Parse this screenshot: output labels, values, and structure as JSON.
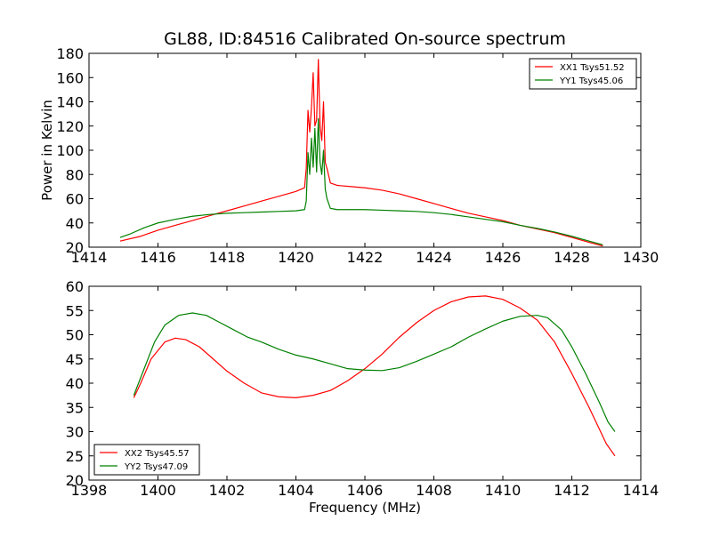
{
  "title": "GL88, ID:84516 Calibrated On-source spectrum",
  "chart_data": [
    {
      "type": "line",
      "xlabel": "",
      "ylabel": "Power in Kelvin",
      "xlim": [
        1414,
        1430
      ],
      "ylim": [
        20,
        180
      ],
      "xticks": [
        1414,
        1416,
        1418,
        1420,
        1422,
        1424,
        1426,
        1428,
        1430
      ],
      "yticks": [
        20,
        40,
        60,
        80,
        100,
        120,
        140,
        160,
        180
      ],
      "legend_position": "top-right",
      "grid": false,
      "series": [
        {
          "name": "XX1 Tsys51.52",
          "color": "#ff0000",
          "points": [
            [
              1414.9,
              25
            ],
            [
              1415.5,
              29
            ],
            [
              1416,
              34
            ],
            [
              1416.5,
              38
            ],
            [
              1417,
              42
            ],
            [
              1417.5,
              46
            ],
            [
              1418,
              50
            ],
            [
              1418.5,
              54
            ],
            [
              1419,
              58
            ],
            [
              1419.5,
              62
            ],
            [
              1420,
              66
            ],
            [
              1420.25,
              69
            ],
            [
              1420.3,
              85
            ],
            [
              1420.35,
              133
            ],
            [
              1420.4,
              115
            ],
            [
              1420.45,
              135
            ],
            [
              1420.5,
              164
            ],
            [
              1420.55,
              120
            ],
            [
              1420.6,
              125
            ],
            [
              1420.65,
              175
            ],
            [
              1420.7,
              120
            ],
            [
              1420.75,
              108
            ],
            [
              1420.8,
              140
            ],
            [
              1420.85,
              90
            ],
            [
              1420.9,
              85
            ],
            [
              1421.0,
              73
            ],
            [
              1421.2,
              71
            ],
            [
              1421.6,
              70
            ],
            [
              1422,
              69
            ],
            [
              1422.5,
              67
            ],
            [
              1423,
              64
            ],
            [
              1423.5,
              60
            ],
            [
              1424,
              56
            ],
            [
              1424.5,
              52
            ],
            [
              1425,
              48
            ],
            [
              1425.5,
              45
            ],
            [
              1426,
              42
            ],
            [
              1426.5,
              38
            ],
            [
              1427,
              35
            ],
            [
              1427.5,
              32
            ],
            [
              1428,
              28
            ],
            [
              1428.5,
              24
            ],
            [
              1428.9,
              21
            ]
          ]
        },
        {
          "name": "YY1 Tsys45.06",
          "color": "#008000",
          "points": [
            [
              1414.9,
              28
            ],
            [
              1415.2,
              31
            ],
            [
              1415.6,
              36
            ],
            [
              1416,
              40
            ],
            [
              1416.5,
              43
            ],
            [
              1417,
              45.5
            ],
            [
              1417.5,
              47
            ],
            [
              1418,
              48
            ],
            [
              1418.5,
              48.5
            ],
            [
              1419,
              49
            ],
            [
              1419.5,
              49.5
            ],
            [
              1420,
              50
            ],
            [
              1420.25,
              51
            ],
            [
              1420.3,
              58
            ],
            [
              1420.35,
              98
            ],
            [
              1420.4,
              80
            ],
            [
              1420.45,
              110
            ],
            [
              1420.5,
              86
            ],
            [
              1420.55,
              118
            ],
            [
              1420.6,
              82
            ],
            [
              1420.65,
              126
            ],
            [
              1420.7,
              90
            ],
            [
              1420.75,
              80
            ],
            [
              1420.8,
              100
            ],
            [
              1420.85,
              68
            ],
            [
              1420.9,
              60
            ],
            [
              1421.0,
              52
            ],
            [
              1421.2,
              51
            ],
            [
              1421.6,
              51
            ],
            [
              1422,
              51
            ],
            [
              1422.5,
              50.5
            ],
            [
              1423,
              50
            ],
            [
              1423.5,
              49.5
            ],
            [
              1424,
              48.5
            ],
            [
              1424.5,
              47
            ],
            [
              1425,
              45
            ],
            [
              1425.5,
              43
            ],
            [
              1426,
              41
            ],
            [
              1426.5,
              38
            ],
            [
              1427,
              35.5
            ],
            [
              1427.5,
              32.5
            ],
            [
              1428,
              29
            ],
            [
              1428.5,
              25
            ],
            [
              1428.9,
              22
            ]
          ]
        }
      ]
    },
    {
      "type": "line",
      "xlabel": "Frequency (MHz)",
      "ylabel": "",
      "xlim": [
        1398,
        1414
      ],
      "ylim": [
        20,
        60
      ],
      "xticks": [
        1398,
        1400,
        1402,
        1404,
        1406,
        1408,
        1410,
        1412,
        1414
      ],
      "yticks": [
        20,
        25,
        30,
        35,
        40,
        45,
        50,
        55,
        60
      ],
      "legend_position": "bottom-left",
      "grid": false,
      "series": [
        {
          "name": "XX2 Tsys45.57",
          "color": "#ff0000",
          "points": [
            [
              1399.3,
              37
            ],
            [
              1399.5,
              40
            ],
            [
              1399.8,
              45
            ],
            [
              1400.2,
              48.5
            ],
            [
              1400.5,
              49.3
            ],
            [
              1400.8,
              49
            ],
            [
              1401.2,
              47.5
            ],
            [
              1401.6,
              45
            ],
            [
              1402,
              42.5
            ],
            [
              1402.5,
              40
            ],
            [
              1403,
              38
            ],
            [
              1403.5,
              37.2
            ],
            [
              1404,
              37
            ],
            [
              1404.5,
              37.5
            ],
            [
              1405,
              38.5
            ],
            [
              1405.5,
              40.5
            ],
            [
              1406,
              43
            ],
            [
              1406.5,
              46
            ],
            [
              1407,
              49.5
            ],
            [
              1407.5,
              52.5
            ],
            [
              1408,
              55
            ],
            [
              1408.5,
              56.8
            ],
            [
              1409,
              57.8
            ],
            [
              1409.5,
              58
            ],
            [
              1410,
              57.3
            ],
            [
              1410.5,
              55.5
            ],
            [
              1411,
              53
            ],
            [
              1411.5,
              48.5
            ],
            [
              1412,
              42
            ],
            [
              1412.5,
              35
            ],
            [
              1412.8,
              30.5
            ],
            [
              1413,
              27.5
            ],
            [
              1413.25,
              25
            ]
          ]
        },
        {
          "name": "YY2 Tsys47.09",
          "color": "#008000",
          "points": [
            [
              1399.3,
              37.5
            ],
            [
              1399.6,
              43
            ],
            [
              1399.9,
              48.5
            ],
            [
              1400.2,
              52
            ],
            [
              1400.6,
              54
            ],
            [
              1401,
              54.5
            ],
            [
              1401.4,
              54
            ],
            [
              1401.8,
              52.5
            ],
            [
              1402.2,
              51
            ],
            [
              1402.6,
              49.5
            ],
            [
              1403,
              48.5
            ],
            [
              1403.5,
              47
            ],
            [
              1404,
              45.8
            ],
            [
              1404.5,
              45
            ],
            [
              1405,
              44
            ],
            [
              1405.5,
              43
            ],
            [
              1406,
              42.7
            ],
            [
              1406.5,
              42.6
            ],
            [
              1407,
              43.2
            ],
            [
              1407.5,
              44.5
            ],
            [
              1408,
              46
            ],
            [
              1408.5,
              47.5
            ],
            [
              1409,
              49.5
            ],
            [
              1409.5,
              51.2
            ],
            [
              1410,
              52.8
            ],
            [
              1410.5,
              53.8
            ],
            [
              1411,
              54
            ],
            [
              1411.3,
              53.5
            ],
            [
              1411.7,
              51
            ],
            [
              1412,
              47.5
            ],
            [
              1412.4,
              42
            ],
            [
              1412.8,
              36
            ],
            [
              1413.05,
              32
            ],
            [
              1413.25,
              30
            ]
          ]
        }
      ]
    }
  ]
}
